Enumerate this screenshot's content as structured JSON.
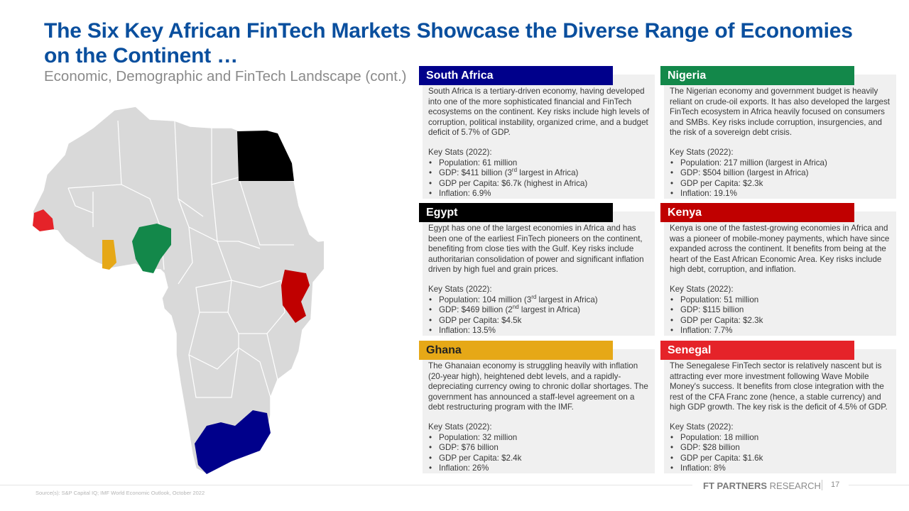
{
  "header": {
    "title": "The Six Key African FinTech Markets Showcase the Diverse Range of Economies on the Continent …",
    "subtitle": "Economic, Demographic and FinTech Landscape (cont.)"
  },
  "colors": {
    "brand_blue": "#0a4f9e",
    "south_africa": "#00008b",
    "nigeria": "#13884a",
    "egypt": "#000000",
    "kenya": "#c00000",
    "ghana": "#e6a817",
    "senegal": "#e52329",
    "map_base": "#d9d9d9"
  },
  "countries": [
    {
      "name": "South Africa",
      "description": "South Africa is a tertiary-driven economy, having developed into one of the more sophisticated financial and FinTech ecosystems on the continent. Key risks include high levels of corruption, political instability, organized crime, and a budget deficit of 5.7% of GDP.",
      "stats_title": "Key Stats (2022):",
      "stats": [
        {
          "text": "Population: 61 million"
        },
        {
          "text": "GDP: $411 billion (3",
          "sup": "rd",
          "after": " largest in Africa)"
        },
        {
          "text": "GDP per Capita: $6.7k (highest in Africa)"
        },
        {
          "text": "Inflation: 6.9%"
        }
      ]
    },
    {
      "name": "Nigeria",
      "description": "The Nigerian economy and government budget is heavily reliant on crude-oil exports. It has also developed the largest FinTech ecosystem in Africa heavily focused on consumers and SMBs. Key risks include corruption, insurgencies, and the risk of a sovereign debt crisis.",
      "stats_title": "Key Stats (2022):",
      "stats": [
        {
          "text": "Population: 217 million (largest in Africa)"
        },
        {
          "text": "GDP: $504 billion (largest in Africa)"
        },
        {
          "text": "GDP per Capita: $2.3k"
        },
        {
          "text": "Inflation: 19.1%"
        }
      ]
    },
    {
      "name": "Egypt",
      "description": "Egypt has one of the largest economies in Africa and has been one of the earliest FinTech pioneers on the continent, benefiting from close ties with the Gulf. Key risks include authoritarian consolidation of power and significant inflation driven by high fuel and grain prices.",
      "stats_title": "Key Stats (2022):",
      "stats": [
        {
          "text": "Population: 104 million (3",
          "sup": "rd",
          "after": " largest in Africa)"
        },
        {
          "text": "GDP: $469 billion (2",
          "sup": "nd",
          "after": " largest in Africa)"
        },
        {
          "text": "GDP per Capita: $4.5k"
        },
        {
          "text": "Inflation: 13.5%"
        }
      ]
    },
    {
      "name": "Kenya",
      "description": "Kenya is one of the fastest-growing economies in Africa and was a pioneer of mobile-money payments, which have since expanded across the continent. It benefits from being at the heart of the East African Economic Area. Key risks include high debt, corruption, and inflation.",
      "stats_title": "Key Stats (2022):",
      "stats": [
        {
          "text": "Population: 51 million"
        },
        {
          "text": "GDP: $115 billion"
        },
        {
          "text": "GDP per Capita: $2.3k"
        },
        {
          "text": "Inflation: 7.7%"
        }
      ]
    },
    {
      "name": "Ghana",
      "description": "The Ghanaian economy is struggling heavily with inflation (20-year high), heightened debt levels, and a rapidly-depreciating currency owing to chronic dollar shortages. The government has announced a staff-level agreement on a debt restructuring program with the IMF.",
      "stats_title": "Key Stats (2022):",
      "stats": [
        {
          "text": "Population: 32 million"
        },
        {
          "text": "GDP: $76 billion"
        },
        {
          "text": "GDP per Capita: $2.4k"
        },
        {
          "text": "Inflation: 26%"
        }
      ]
    },
    {
      "name": "Senegal",
      "description": "The Senegalese FinTech sector is relatively nascent but is attracting ever more investment following Wave Mobile Money's success. It benefits from close integration with the rest of the CFA Franc zone (hence, a stable currency) and high GDP growth. The key risk is the deficit of 4.5% of GDP.",
      "stats_title": "Key Stats (2022):",
      "stats": [
        {
          "text": "Population: 18 million"
        },
        {
          "text": "GDP: $28 billion"
        },
        {
          "text": "GDP per Capita: $1.6k"
        },
        {
          "text": "Inflation: 8%"
        }
      ]
    }
  ],
  "footer": {
    "source": "Source(s): S&P Capital IQ; IMF World Economic Outlook, October 2022",
    "brand_bold": "FT PARTNERS",
    "brand_rest": " RESEARCH",
    "page_number": "17"
  }
}
